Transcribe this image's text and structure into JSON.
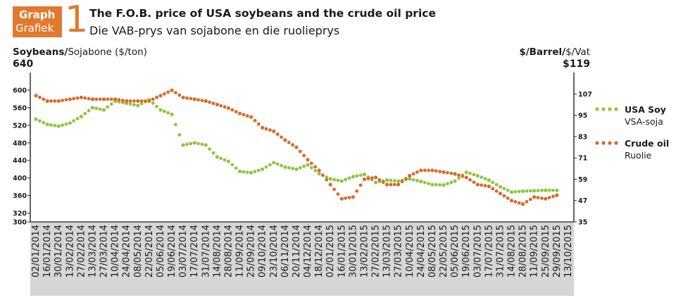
{
  "badge": {
    "line1": "Graph",
    "line2": "Grafiek",
    "number": "1"
  },
  "title": "The F.O.B. price of USA soybeans and the crude oil price",
  "subtitle": "Die VAB-prys van sojabone en die ruolieprys",
  "left_axis": {
    "label_bold": "Soybeans/",
    "label_rest": "Sojabone ($/ton)",
    "max_label": "640"
  },
  "right_axis": {
    "label_bold": "$/Barrel/",
    "label_rest": "$/Vat",
    "max_label": "$119"
  },
  "legend": [
    {
      "name": "USA Soy",
      "sub": "VSA-soja",
      "color": "#8dc63f"
    },
    {
      "name": "Crude oil",
      "sub": "Ruolie",
      "color": "#d9692a"
    }
  ],
  "chart_data": {
    "type": "scatter",
    "title": "The F.O.B. price of USA soybeans and the crude oil price",
    "x_dates": [
      "02/01/2014",
      "16/01/2014",
      "30/01/2014",
      "13/02/2014",
      "27/02/2014",
      "13/03/2014",
      "27/03/2014",
      "10/04/2014",
      "24/04/2014",
      "08/05/2014",
      "22/05/2014",
      "05/06/2014",
      "19/06/2014",
      "03/07/2014",
      "17/07/2014",
      "31/07/2014",
      "14/08/2014",
      "28/08/2014",
      "11/09/2014",
      "25/09/2014",
      "09/10/2014",
      "23/10/2014",
      "06/11/2014",
      "20/11/2014",
      "04/12/2014",
      "18/12/2014",
      "02/01/2015",
      "16/01/2015",
      "30/01/2015",
      "13/02/2015",
      "27/02/2015",
      "13/03/2015",
      "27/03/2015",
      "10/04/2015",
      "24/04/2015",
      "08/05/2015",
      "22/05/2015",
      "05/06/2015",
      "19/06/2015",
      "03/07/2015",
      "17/07/2015",
      "31/07/2015",
      "14/08/2015",
      "28/08/2015",
      "11/09/2015",
      "25/09/2015",
      "09/10/2015"
    ],
    "x_tick_labels": [
      "02/01/2014",
      "16/01/2014",
      "30/01/2014",
      "13/02/2014",
      "27/02/2014",
      "13/03/2014",
      "27/03/2014",
      "10/04/2014",
      "24/04/2014",
      "08/05/2014",
      "22/05/2014",
      "05/06/2014",
      "19/06/2014",
      "03/07/2014",
      "17/07/2014",
      "31/07/2014",
      "14/08/2014",
      "28/08/2014",
      "11/09/2014",
      "25/09/2014",
      "09/10/2014",
      "23/10/2014",
      "06/11/2014",
      "20/11/2014",
      "04/12/2014",
      "18/12/2014",
      "02/01/2015",
      "16/01/2015",
      "30/01/2015",
      "13/02/2015",
      "27/02/2015",
      "13/03/2015",
      "27/03/2015",
      "10/04/2015",
      "24/04/2015",
      "08/05/2015",
      "22/05/2015",
      "05/06/2015",
      "19/06/2015",
      "03/07/2015",
      "17/07/2015",
      "31/07/2015",
      "14/08/2015",
      "28/08/2015",
      "11/09/2015",
      "25/09/2015",
      "29/09/2015",
      "13/10/2015"
    ],
    "left_axis": {
      "unit": "$/ton",
      "ylim": [
        300,
        640
      ],
      "ticks": [
        300,
        320,
        360,
        400,
        440,
        480,
        520,
        560,
        600
      ]
    },
    "right_axis": {
      "unit": "$/barrel",
      "ylim": [
        35,
        119
      ],
      "ticks": [
        35,
        47,
        59,
        71,
        83,
        95,
        107
      ]
    },
    "series": [
      {
        "name": "USA Soy",
        "axis": "left",
        "values": [
          534,
          522,
          518,
          525,
          540,
          560,
          555,
          575,
          570,
          565,
          578,
          555,
          545,
          475,
          480,
          475,
          448,
          438,
          415,
          412,
          420,
          435,
          425,
          420,
          430,
          410,
          398,
          393,
          403,
          408,
          390,
          395,
          393,
          398,
          392,
          385,
          384,
          393,
          413,
          405,
          395,
          380,
          368,
          370,
          371,
          372,
          372
        ]
      },
      {
        "name": "Crude oil",
        "axis": "right",
        "values": [
          106,
          103,
          103,
          104,
          105,
          104,
          104,
          104,
          103,
          103,
          103,
          106,
          109,
          105,
          104,
          103,
          101,
          99,
          96,
          94,
          88,
          86,
          81,
          77,
          70,
          64,
          56,
          48,
          49,
          59,
          60,
          56,
          56,
          61,
          64,
          64,
          63,
          62,
          60,
          56,
          55,
          51,
          47,
          45,
          49,
          48,
          50
        ]
      }
    ]
  }
}
